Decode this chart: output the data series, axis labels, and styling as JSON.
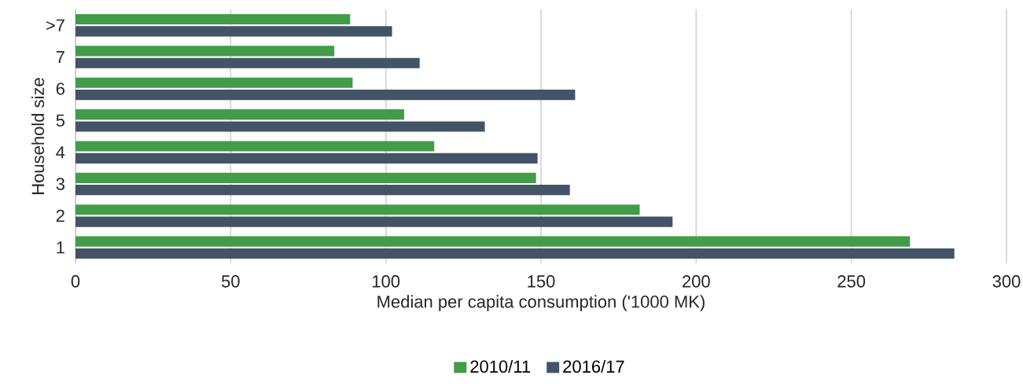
{
  "chart_data": {
    "type": "bar",
    "orientation": "horizontal",
    "xlabel": "Median per capita consumption ('1000 MK)",
    "ylabel": "Household size",
    "categories": [
      ">7",
      "7",
      "6",
      "5",
      "4",
      "3",
      "2",
      "1"
    ],
    "series": [
      {
        "name": "2010/11",
        "color": "#439c47",
        "values": [
          88.5,
          83.4,
          89.3,
          105.9,
          115.6,
          148.4,
          181.8,
          268.9
        ]
      },
      {
        "name": "2016/17",
        "color": "#425466",
        "values": [
          102,
          110.9,
          161,
          131.9,
          148.9,
          159.3,
          192.4,
          283.2
        ]
      }
    ],
    "xlim": [
      0,
      300
    ],
    "xticks": [
      0,
      50,
      100,
      150,
      200,
      250,
      300
    ],
    "grid": "x",
    "legend": "bottom"
  }
}
